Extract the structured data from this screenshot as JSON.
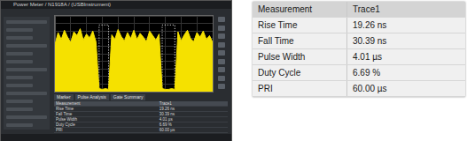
{
  "window": {
    "title": "Power Meter / N1918A / (USBInstrument)",
    "tabs": [
      "Marker",
      "Pulse Analysis",
      "Gate Summary"
    ]
  },
  "chart_data": {
    "type": "line",
    "x": [
      0,
      2,
      4,
      6,
      8,
      10,
      12,
      14,
      16,
      18,
      20,
      22,
      24,
      26,
      28,
      30,
      32,
      34,
      36,
      38,
      40,
      42,
      44,
      46,
      48,
      50,
      52,
      54,
      56,
      58,
      60,
      62,
      64,
      66,
      68,
      70,
      72,
      74,
      76,
      78,
      80,
      82,
      84,
      86,
      88,
      90,
      92,
      94,
      96,
      98,
      100
    ],
    "xlim": [
      0,
      100
    ],
    "xticks": [
      0,
      10,
      20,
      30,
      40,
      50,
      60,
      70,
      80,
      90,
      100
    ],
    "ylim": [
      0,
      10
    ],
    "yticks": [
      0,
      1,
      2,
      3,
      4,
      5,
      6,
      7,
      8,
      9,
      10
    ],
    "grid": true,
    "tick_labels": false,
    "series": [
      {
        "color": "#f5e100",
        "values": [
          6.2,
          7.8,
          6.9,
          8.1,
          7.2,
          6.5,
          7.9,
          7.4,
          8.3,
          6.8,
          7.6,
          7.1,
          8.0,
          6.6,
          0.4,
          0.3,
          0.4,
          0.3,
          7.5,
          6.9,
          8.2,
          7.3,
          6.7,
          7.8,
          7.0,
          8.1,
          6.9,
          7.7,
          7.2,
          6.6,
          8.0,
          7.4,
          6.8,
          7.6,
          0.4,
          0.3,
          0.3,
          0.4,
          0.3,
          7.9,
          6.7,
          7.5,
          8.1,
          7.0,
          6.6,
          7.8,
          7.2,
          8.0,
          6.9,
          7.4,
          6.5
        ]
      },
      {
        "color": "#ffffff",
        "line_style": "dotted",
        "x": [
          28,
          28,
          34,
          34,
          51,
          68,
          68,
          76,
          76
        ],
        "values": [
          0.4,
          8.8,
          8.8,
          0.4,
          null,
          0.4,
          8.8,
          8.8,
          0.4
        ]
      }
    ]
  },
  "measurement_table": {
    "header": [
      "Measurement",
      "Trace1"
    ],
    "rows": [
      [
        "Rise Time",
        "19.26 ns"
      ],
      [
        "Fall Time",
        "30.39 ns"
      ],
      [
        "Pulse Width",
        "4.01 µs"
      ],
      [
        "Duty Cycle",
        "6.69 %"
      ],
      [
        "PRI",
        "60.00 µs"
      ]
    ]
  }
}
